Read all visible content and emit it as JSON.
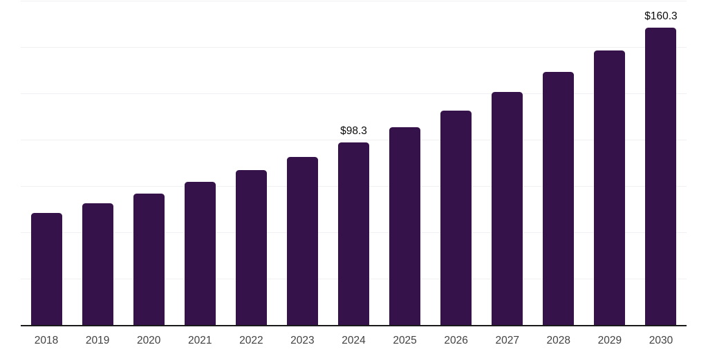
{
  "chart_data": {
    "type": "bar",
    "title": "",
    "xlabel": "",
    "ylabel": "",
    "categories": [
      "2018",
      "2019",
      "2020",
      "2021",
      "2022",
      "2023",
      "2024",
      "2025",
      "2026",
      "2027",
      "2028",
      "2029",
      "2030"
    ],
    "values": [
      60.3,
      65.5,
      71.0,
      77.3,
      83.5,
      90.6,
      98.3,
      106.5,
      115.7,
      125.6,
      136.3,
      147.8,
      160.3
    ],
    "value_labels": [
      {
        "category": "2024",
        "text": "$98.3"
      },
      {
        "category": "2030",
        "text": "$160.3"
      }
    ],
    "ylim": [
      0,
      175
    ],
    "grid": true,
    "grid_step": 25,
    "legend": false,
    "colors": {
      "bar": "#36124b",
      "gridline": "#f0eff1",
      "axis_line": "#1a1a1a",
      "tick_label": "#424242",
      "value_label": "#0a0a0a",
      "background": "#ffffff"
    }
  }
}
